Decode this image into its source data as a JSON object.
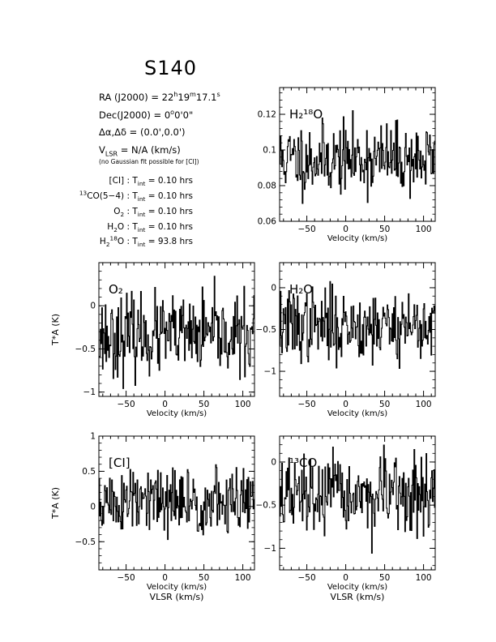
{
  "header": {
    "title": "S140",
    "ra_label": "RA (J2000) = ",
    "ra_h": "22",
    "ra_m": "19",
    "ra_s": "17.1",
    "dec_label": "Dec(J2000) = ",
    "dec_d": "0",
    "dec_m": "0",
    "dec_s": "0",
    "offset_label": "Δα,Δδ = (0.0',0.0')",
    "vlsr_label": " = N/A  (km/s)",
    "note": "(no Gaussian fit possible for [CI])"
  },
  "integration": [
    {
      "species": "[CI]",
      "value": "= 0.10 hrs"
    },
    {
      "species": "CO(5−4)",
      "value": "= 0.10 hrs"
    },
    {
      "species": "O",
      "value": "= 0.10 hrs"
    },
    {
      "species": "H",
      "value": "= 0.10 hrs"
    },
    {
      "species": "H",
      "value": "= 93.8 hrs"
    }
  ],
  "chart_data": [
    {
      "id": "h218o",
      "type": "line",
      "label": "H₂¹⁸O",
      "xlim": [
        -85,
        115
      ],
      "ylim": [
        0.06,
        0.135
      ],
      "yticks": [
        0.06,
        0.08,
        0.1,
        0.12
      ],
      "ytick_labels": [
        "0.06",
        "0.08",
        "0.1",
        "0.12"
      ],
      "xticks": [
        -50,
        0,
        50,
        100
      ],
      "xtick_labels": [
        "−50",
        "0",
        "50",
        "100"
      ],
      "xlabel": "Velocity (km/s)",
      "ylabel": "",
      "xlabel2": "",
      "baseline": 0.095,
      "noise": 0.011,
      "seed": 11
    },
    {
      "id": "o2",
      "type": "line",
      "label": "O₂",
      "xlim": [
        -85,
        115
      ],
      "ylim": [
        -1.05,
        0.5
      ],
      "yticks": [
        -1,
        -0.5,
        0
      ],
      "ytick_labels": [
        "−1",
        "−0.5",
        "0"
      ],
      "xticks": [
        -50,
        0,
        50,
        100
      ],
      "xtick_labels": [
        "−50",
        "0",
        "50",
        "100"
      ],
      "xlabel": "Velocity (km/s)",
      "ylabel": "T*A (K)",
      "xlabel2": "",
      "baseline": -0.35,
      "noise": 0.25,
      "seed": 23
    },
    {
      "id": "h2o",
      "type": "line",
      "label": "H₂O",
      "xlim": [
        -85,
        115
      ],
      "ylim": [
        -1.3,
        0.3
      ],
      "yticks": [
        -1,
        -0.5,
        0
      ],
      "ytick_labels": [
        "−1",
        "−0.5",
        "0"
      ],
      "xticks": [
        -50,
        0,
        50,
        100
      ],
      "xtick_labels": [
        "−50",
        "0",
        "50",
        "100"
      ],
      "xlabel": "Velocity (km/s)",
      "ylabel": "",
      "xlabel2": "",
      "baseline": -0.45,
      "noise": 0.24,
      "seed": 37
    },
    {
      "id": "ci",
      "type": "line",
      "label": "[CI]",
      "xlim": [
        -85,
        115
      ],
      "ylim": [
        -0.9,
        1.0
      ],
      "yticks": [
        -0.5,
        0,
        0.5,
        1
      ],
      "ytick_labels": [
        "−0.5",
        "0",
        "0.5",
        "1"
      ],
      "xticks": [
        -50,
        0,
        50,
        100
      ],
      "xtick_labels": [
        "−50",
        "0",
        "50",
        "100"
      ],
      "xlabel": "Velocity (km/s)",
      "ylabel": "T*A (K)",
      "xlabel2": "VLSR (km/s)",
      "baseline": 0.05,
      "noise": 0.28,
      "seed": 51
    },
    {
      "id": "13co",
      "type": "line",
      "label": "¹³CO",
      "xlim": [
        -85,
        115
      ],
      "ylim": [
        -1.25,
        0.3
      ],
      "yticks": [
        -1,
        -0.5,
        0
      ],
      "ytick_labels": [
        "−1",
        "−0.5",
        "0"
      ],
      "xticks": [
        -50,
        0,
        50,
        100
      ],
      "xtick_labels": [
        "−50",
        "0",
        "50",
        "100"
      ],
      "xlabel": "Velocity (km/s)",
      "ylabel": "",
      "xlabel2": "VLSR (km/s)",
      "baseline": -0.4,
      "noise": 0.25,
      "seed": 67
    }
  ]
}
